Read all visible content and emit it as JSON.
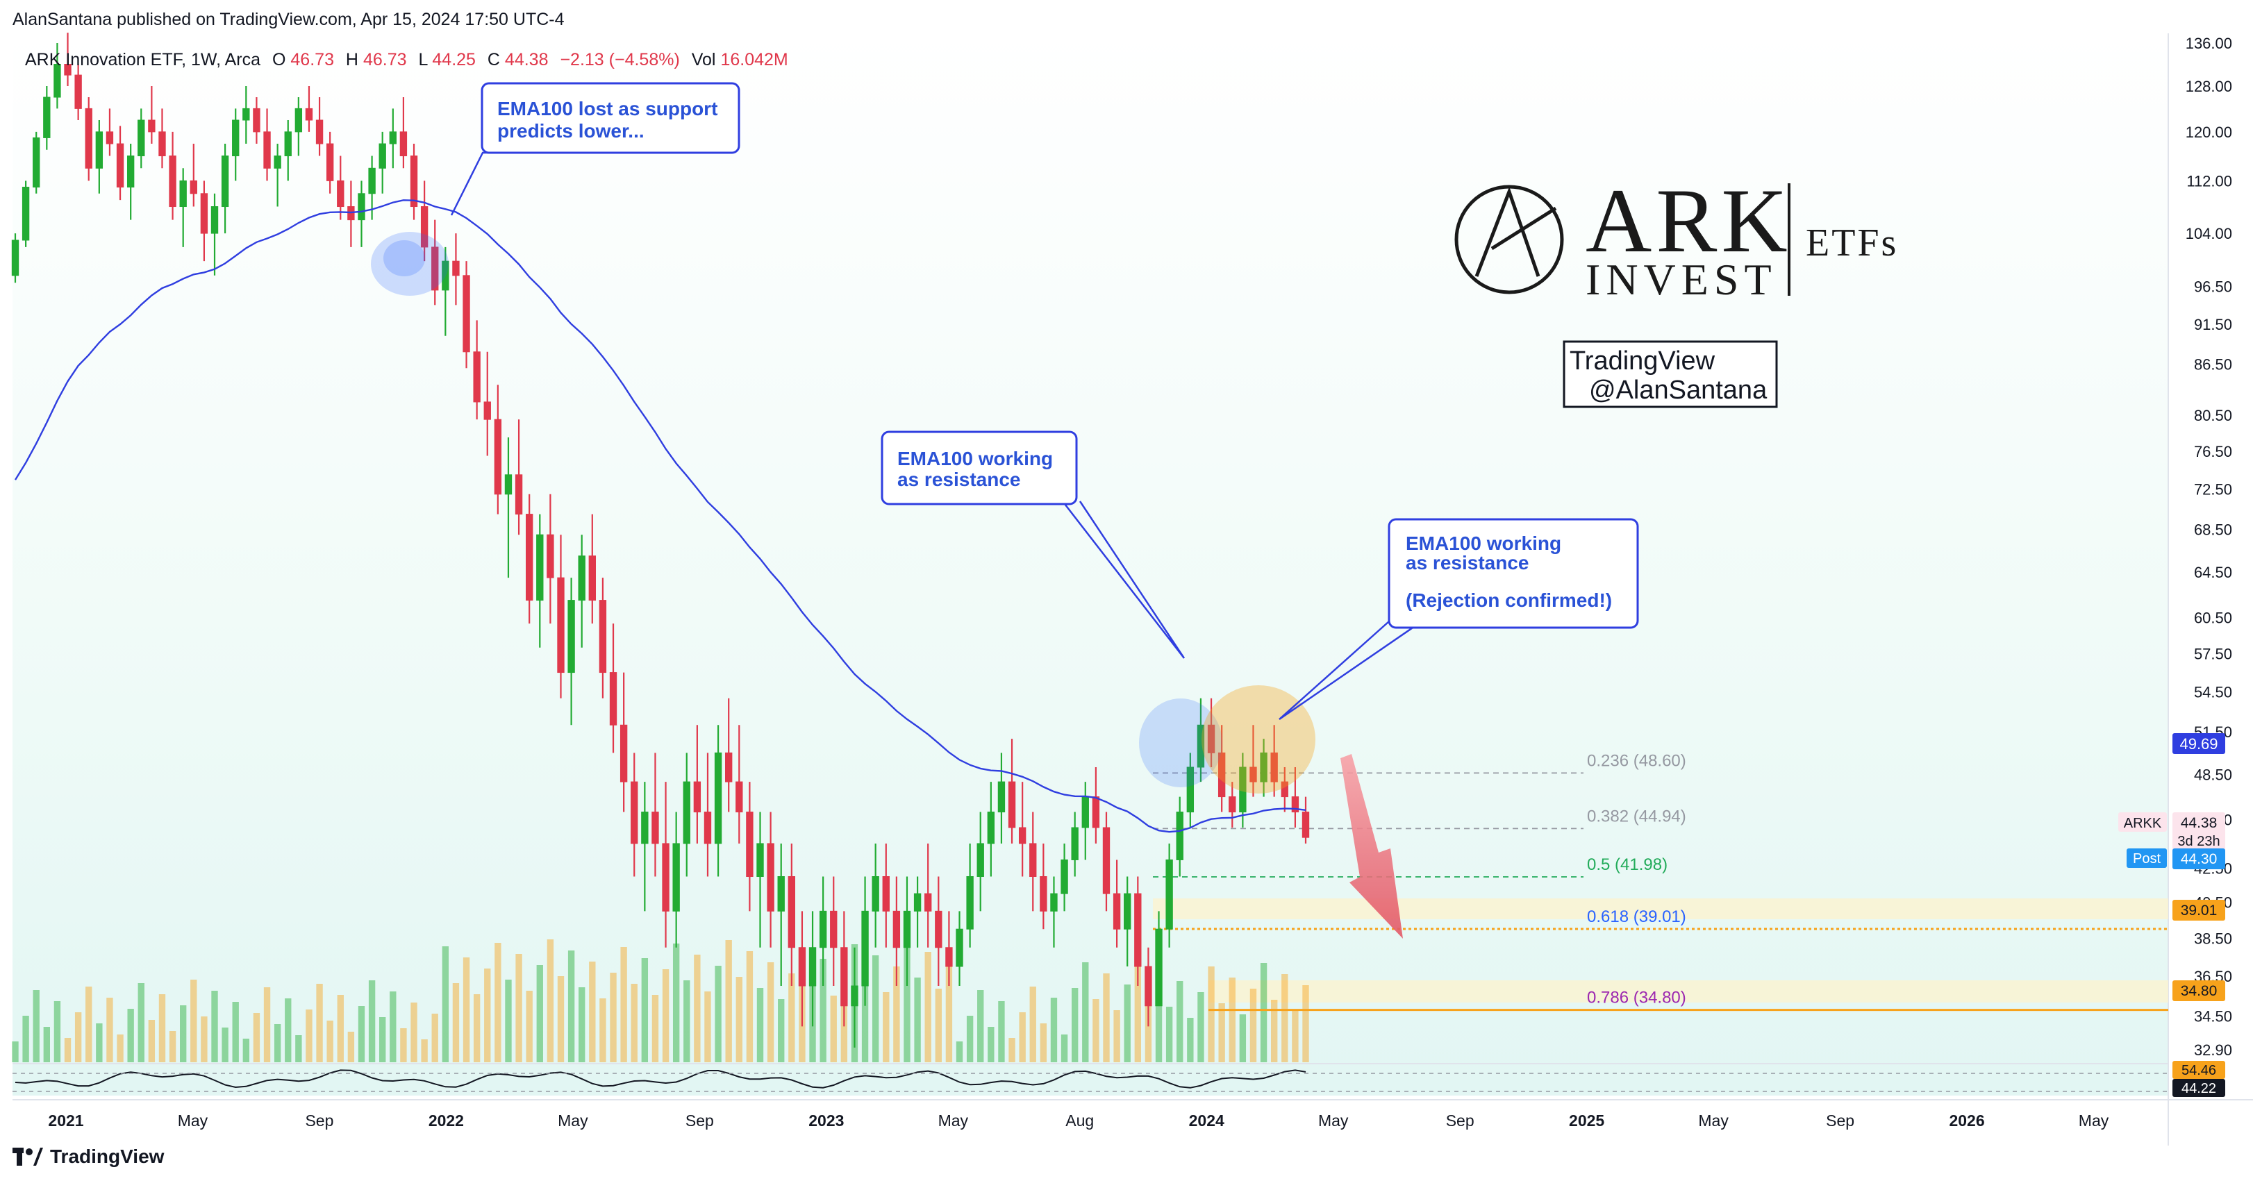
{
  "publisher_line": "AlanSantana published on TradingView.com, Apr 15, 2024 17:50 UTC-4",
  "footer_brand": "TradingView",
  "logo": {
    "brand": "ARK",
    "line2": "INVEST",
    "etfs": "ETFs"
  },
  "watermark": {
    "line1": "TradingView",
    "line2": "@AlanSantana"
  },
  "colors": {
    "up": "#26a69a",
    "up_candle": "#22ab33",
    "down": "#e0384b",
    "ema": "#2f3ee0",
    "fib_gray": "#9598a1",
    "fib_green": "#22ab5a",
    "fib_blue": "#2962ff",
    "fib_purple": "#9c27b0",
    "orange": "#f7a21b",
    "callout_text": "#2a52d6"
  },
  "legend": {
    "symbol": "ARK Innovation ETF, 1W, Arca",
    "o_label": "O",
    "o": "46.73",
    "h_label": "H",
    "h": "46.73",
    "l_label": "L",
    "l": "44.25",
    "c_label": "C",
    "c": "44.38",
    "change": "−2.13 (−4.58%)",
    "vol_label": "Vol",
    "vol": "16.042M"
  },
  "callouts": [
    {
      "line1": "EMA100 lost as support",
      "line2": "predicts lower...",
      "line3": ""
    },
    {
      "line1": "EMA100 working",
      "line2": "as resistance",
      "line3": ""
    },
    {
      "line1": "EMA100 working",
      "line2": "as resistance",
      "line3": "(Rejection confirmed!)"
    }
  ],
  "fib_labels": [
    "0.236 (48.60)",
    "0.382 (44.94)",
    "0.5 (41.98)",
    "0.618 (39.01)",
    "0.786 (34.80)"
  ],
  "price_badges": {
    "ema": "49.69",
    "symbol": "ARKK",
    "last": "44.38",
    "countdown": "3d 23h",
    "post_label": "Post",
    "post": "44.30",
    "level_1": "39.01",
    "level_2": "34.80",
    "ind_1": "54.46",
    "ind_2": "44.22"
  },
  "chart_data": {
    "type": "candlestick",
    "symbol": "ARKK",
    "interval": "1W",
    "y_axis_ticks": [
      136.0,
      128.0,
      120.0,
      112.0,
      104.0,
      96.5,
      91.5,
      86.5,
      80.5,
      76.5,
      72.5,
      68.5,
      64.5,
      60.5,
      57.5,
      54.5,
      51.5,
      48.5,
      45.5,
      42.5,
      40.5,
      38.5,
      36.5,
      34.5,
      32.9
    ],
    "x_axis_ticks": [
      "2021",
      "May",
      "Sep",
      "2022",
      "May",
      "Sep",
      "2023",
      "May",
      "Aug",
      "2024",
      "May",
      "Sep",
      "2025",
      "May",
      "Sep",
      "2026",
      "May"
    ],
    "x_axis_bold": [
      "2021",
      "2022",
      "2023",
      "2024",
      "2025",
      "2026"
    ],
    "series": [
      {
        "name": "",
        "type": "candles",
        "ohlc_weekly_estimated": [
          [
            98,
            104,
            97,
            103
          ],
          [
            103,
            112,
            102,
            111
          ],
          [
            111,
            120,
            110,
            119
          ],
          [
            119,
            128,
            117,
            126
          ],
          [
            126,
            136,
            124,
            132
          ],
          [
            132,
            138,
            128,
            130
          ],
          [
            130,
            132,
            122,
            124
          ],
          [
            124,
            126,
            112,
            114
          ],
          [
            114,
            122,
            110,
            120
          ],
          [
            120,
            124,
            116,
            118
          ],
          [
            118,
            121,
            109,
            111
          ],
          [
            111,
            118,
            106,
            116
          ],
          [
            116,
            124,
            114,
            122
          ],
          [
            122,
            128,
            118,
            120
          ],
          [
            120,
            124,
            114,
            116
          ],
          [
            116,
            120,
            106,
            108
          ],
          [
            108,
            114,
            102,
            112
          ],
          [
            112,
            118,
            108,
            110
          ],
          [
            110,
            112,
            100,
            104
          ],
          [
            104,
            110,
            98,
            108
          ],
          [
            108,
            118,
            104,
            116
          ],
          [
            116,
            124,
            112,
            122
          ],
          [
            122,
            128,
            118,
            124
          ],
          [
            124,
            126,
            118,
            120
          ],
          [
            120,
            124,
            112,
            114
          ],
          [
            114,
            118,
            108,
            116
          ],
          [
            116,
            122,
            112,
            120
          ],
          [
            120,
            126,
            116,
            124
          ],
          [
            124,
            128,
            120,
            122
          ],
          [
            122,
            126,
            116,
            118
          ],
          [
            118,
            120,
            110,
            112
          ],
          [
            112,
            116,
            106,
            108
          ],
          [
            108,
            112,
            102,
            106
          ],
          [
            106,
            112,
            102,
            110
          ],
          [
            110,
            116,
            106,
            114
          ],
          [
            114,
            120,
            110,
            118
          ],
          [
            118,
            124,
            114,
            120
          ],
          [
            120,
            126,
            114,
            116
          ],
          [
            116,
            118,
            106,
            108
          ],
          [
            108,
            112,
            100,
            102
          ],
          [
            102,
            106,
            94,
            96
          ],
          [
            96,
            102,
            90,
            100
          ],
          [
            100,
            104,
            94,
            98
          ],
          [
            98,
            100,
            86,
            88
          ],
          [
            88,
            92,
            80,
            82
          ],
          [
            82,
            88,
            76,
            80
          ],
          [
            80,
            84,
            70,
            72
          ],
          [
            72,
            78,
            64,
            74
          ],
          [
            74,
            80,
            68,
            70
          ],
          [
            70,
            72,
            60,
            62
          ],
          [
            62,
            70,
            58,
            68
          ],
          [
            68,
            72,
            60,
            64
          ],
          [
            64,
            68,
            54,
            56
          ],
          [
            56,
            64,
            52,
            62
          ],
          [
            62,
            68,
            58,
            66
          ],
          [
            66,
            70,
            60,
            62
          ],
          [
            62,
            64,
            54,
            56
          ],
          [
            56,
            60,
            50,
            52
          ],
          [
            52,
            56,
            46,
            48
          ],
          [
            48,
            50,
            42,
            44
          ],
          [
            44,
            48,
            40,
            46
          ],
          [
            46,
            50,
            42,
            44
          ],
          [
            44,
            48,
            38,
            40
          ],
          [
            40,
            46,
            38,
            44
          ],
          [
            44,
            50,
            42,
            48
          ],
          [
            48,
            52,
            44,
            46
          ],
          [
            46,
            50,
            42,
            44
          ],
          [
            44,
            52,
            42,
            50
          ],
          [
            50,
            54,
            46,
            48
          ],
          [
            48,
            52,
            44,
            46
          ],
          [
            46,
            48,
            40,
            42
          ],
          [
            42,
            46,
            38,
            44
          ],
          [
            44,
            46,
            38,
            40
          ],
          [
            40,
            44,
            36,
            42
          ],
          [
            42,
            44,
            36,
            38
          ],
          [
            38,
            40,
            34,
            36
          ],
          [
            36,
            40,
            34,
            38
          ],
          [
            38,
            42,
            36,
            40
          ],
          [
            40,
            42,
            36,
            38
          ],
          [
            38,
            40,
            34,
            35
          ],
          [
            35,
            38,
            33,
            36
          ],
          [
            36,
            42,
            35,
            40
          ],
          [
            40,
            44,
            38,
            42
          ],
          [
            42,
            44,
            38,
            40
          ],
          [
            40,
            42,
            36,
            38
          ],
          [
            38,
            42,
            36,
            40
          ],
          [
            40,
            42,
            38,
            41
          ],
          [
            41,
            44,
            38,
            40
          ],
          [
            40,
            42,
            36,
            38
          ],
          [
            38,
            40,
            36,
            37
          ],
          [
            37,
            40,
            36,
            39
          ],
          [
            39,
            44,
            38,
            42
          ],
          [
            42,
            46,
            40,
            44
          ],
          [
            44,
            48,
            42,
            46
          ],
          [
            46,
            50,
            44,
            48
          ],
          [
            48,
            51,
            44,
            45
          ],
          [
            45,
            48,
            42,
            44
          ],
          [
            44,
            46,
            40,
            42
          ],
          [
            42,
            44,
            39,
            40
          ],
          [
            40,
            42,
            38,
            41
          ],
          [
            41,
            44,
            40,
            43
          ],
          [
            43,
            46,
            42,
            45
          ],
          [
            45,
            48,
            43,
            47
          ],
          [
            47,
            49,
            44,
            45
          ],
          [
            45,
            46,
            40,
            41
          ],
          [
            41,
            43,
            38,
            39
          ],
          [
            39,
            42,
            37,
            41
          ],
          [
            41,
            42,
            36,
            37
          ],
          [
            37,
            38,
            34,
            35
          ],
          [
            35,
            40,
            35,
            39
          ],
          [
            39,
            44,
            38,
            43
          ],
          [
            43,
            47,
            42,
            46
          ],
          [
            46,
            50,
            45,
            49
          ],
          [
            49,
            54,
            48,
            52
          ],
          [
            52,
            54,
            49,
            50
          ],
          [
            50,
            52,
            46,
            47
          ],
          [
            47,
            48,
            45,
            46
          ],
          [
            46,
            50,
            45,
            49
          ],
          [
            49,
            52,
            47,
            48
          ],
          [
            48,
            51,
            47,
            50
          ],
          [
            50,
            52,
            47,
            48
          ],
          [
            48,
            49,
            46,
            47
          ],
          [
            47,
            49,
            45,
            46
          ],
          [
            46,
            47,
            44,
            44.38
          ]
        ]
      },
      {
        "name": "",
        "type": "line"
      },
      {
        "name": "",
        "type": "volume"
      },
      {
        "name": "",
        "type": "oscillator"
      }
    ],
    "fibonacci": [
      {
        "ratio": 0.236,
        "price": 48.6
      },
      {
        "ratio": 0.382,
        "price": 44.94
      },
      {
        "ratio": 0.5,
        "price": 41.98
      },
      {
        "ratio": 0.618,
        "price": 39.01
      },
      {
        "ratio": 0.786,
        "price": 34.8
      }
    ],
    "ohlc_last": {
      "open": 46.73,
      "high": 46.73,
      "low": 44.25,
      "close": 44.38,
      "change": -2.13,
      "change_pct": -4.58,
      "volume": "16.042M"
    },
    "ema100_last": 49.69,
    "post_market": 44.3,
    "grid": false
  }
}
